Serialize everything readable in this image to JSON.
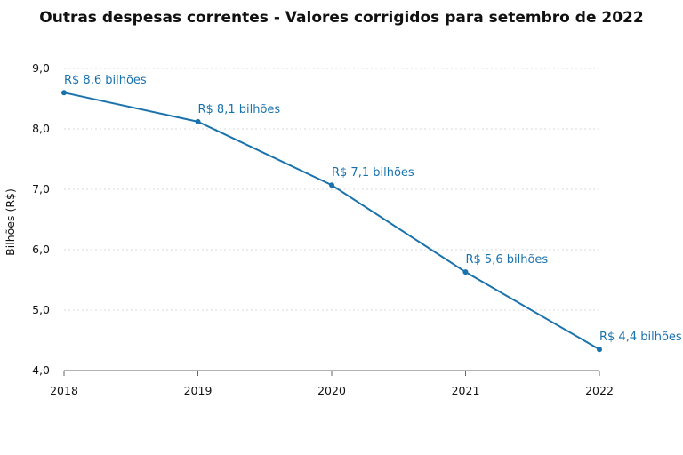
{
  "chart_data": {
    "type": "line",
    "title": "Outras despesas correntes - Valores corrigidos para setembro de 2022",
    "xlabel": "",
    "ylabel": "Bilhões (R$)",
    "x": [
      "2018",
      "2019",
      "2020",
      "2021",
      "2022"
    ],
    "series": [
      {
        "values": [
          8.6,
          8.12,
          7.07,
          5.63,
          4.35
        ]
      }
    ],
    "data_labels": [
      "R$ 8,6 bilhões",
      "R$ 8,1 bilhões",
      "R$ 7,1 bilhões",
      "R$ 5,6 bilhões",
      "R$ 4,4 bilhões"
    ],
    "ylim": [
      4.0,
      9.0
    ],
    "yticks": [
      4.0,
      5.0,
      6.0,
      7.0,
      8.0,
      9.0
    ],
    "ytick_labels": [
      "4,0",
      "5,0",
      "6,0",
      "7,0",
      "8,0",
      "9,0"
    ],
    "grid": true,
    "line_color": "#1a72ad",
    "label_color": "#1a72ad"
  }
}
